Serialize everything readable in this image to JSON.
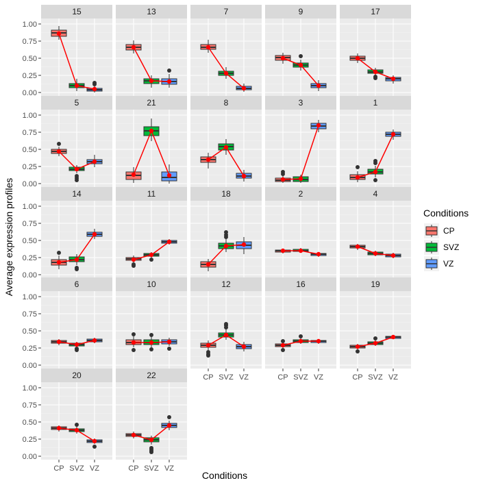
{
  "chart_data": {
    "type": "boxplot",
    "facet_layout": "5 columns x 5 rows, free panels, shared axes",
    "ylabel": "Average expression profiles",
    "xlabel": "Conditions",
    "categories": [
      "CP",
      "SVZ",
      "VZ"
    ],
    "ylim": [
      -0.05,
      1.08
    ],
    "yticks": [
      0.0,
      0.25,
      0.5,
      0.75,
      1.0
    ],
    "ytick_labels": [
      "0.00",
      "0.25",
      "0.50",
      "0.75",
      "1.00"
    ],
    "legend": {
      "title": "Conditions",
      "placement": "right",
      "entries": [
        {
          "label": "CP",
          "color": "#F8766D"
        },
        {
          "label": "SVZ",
          "color": "#00BA38"
        },
        {
          "label": "VZ",
          "color": "#619CFF"
        }
      ]
    },
    "mean_line_color": "#FF0000",
    "panels": [
      {
        "label": "15",
        "means": [
          0.86,
          0.1,
          0.05
        ],
        "boxes": [
          {
            "q1": 0.82,
            "median": 0.87,
            "q3": 0.91,
            "lo": 0.77,
            "hi": 0.97,
            "out": []
          },
          {
            "q1": 0.07,
            "median": 0.1,
            "q3": 0.13,
            "lo": 0.02,
            "hi": 0.2,
            "out": []
          },
          {
            "q1": 0.02,
            "median": 0.04,
            "q3": 0.06,
            "lo": 0.0,
            "hi": 0.09,
            "out": [
              0.12,
              0.14
            ]
          }
        ]
      },
      {
        "label": "13",
        "means": [
          0.66,
          0.17,
          0.16
        ],
        "boxes": [
          {
            "q1": 0.62,
            "median": 0.66,
            "q3": 0.7,
            "lo": 0.57,
            "hi": 0.76,
            "out": []
          },
          {
            "q1": 0.13,
            "median": 0.17,
            "q3": 0.2,
            "lo": 0.07,
            "hi": 0.25,
            "out": []
          },
          {
            "q1": 0.12,
            "median": 0.16,
            "q3": 0.2,
            "lo": 0.07,
            "hi": 0.27,
            "out": [
              0.32
            ]
          }
        ]
      },
      {
        "label": "7",
        "means": [
          0.66,
          0.28,
          0.06
        ],
        "boxes": [
          {
            "q1": 0.63,
            "median": 0.66,
            "q3": 0.7,
            "lo": 0.58,
            "hi": 0.77,
            "out": []
          },
          {
            "q1": 0.25,
            "median": 0.28,
            "q3": 0.31,
            "lo": 0.2,
            "hi": 0.37,
            "out": []
          },
          {
            "q1": 0.04,
            "median": 0.06,
            "q3": 0.09,
            "lo": 0.01,
            "hi": 0.13,
            "out": []
          }
        ]
      },
      {
        "label": "9",
        "means": [
          0.5,
          0.4,
          0.1
        ],
        "boxes": [
          {
            "q1": 0.47,
            "median": 0.51,
            "q3": 0.54,
            "lo": 0.42,
            "hi": 0.58,
            "out": []
          },
          {
            "q1": 0.37,
            "median": 0.4,
            "q3": 0.43,
            "lo": 0.32,
            "hi": 0.48,
            "out": [
              0.53
            ]
          },
          {
            "q1": 0.07,
            "median": 0.1,
            "q3": 0.13,
            "lo": 0.02,
            "hi": 0.18,
            "out": []
          }
        ]
      },
      {
        "label": "17",
        "means": [
          0.5,
          0.3,
          0.2
        ],
        "boxes": [
          {
            "q1": 0.47,
            "median": 0.5,
            "q3": 0.53,
            "lo": 0.43,
            "hi": 0.57,
            "out": []
          },
          {
            "q1": 0.28,
            "median": 0.3,
            "q3": 0.33,
            "lo": 0.25,
            "hi": 0.36,
            "out": [
              0.21,
              0.23
            ]
          },
          {
            "q1": 0.17,
            "median": 0.2,
            "q3": 0.22,
            "lo": 0.13,
            "hi": 0.25,
            "out": []
          }
        ]
      },
      {
        "label": "5",
        "means": [
          0.47,
          0.21,
          0.32
        ],
        "boxes": [
          {
            "q1": 0.44,
            "median": 0.47,
            "q3": 0.5,
            "lo": 0.4,
            "hi": 0.54,
            "out": [
              0.58
            ]
          },
          {
            "q1": 0.19,
            "median": 0.21,
            "q3": 0.24,
            "lo": 0.15,
            "hi": 0.27,
            "out": [
              0.05,
              0.08,
              0.11
            ]
          },
          {
            "q1": 0.29,
            "median": 0.32,
            "q3": 0.35,
            "lo": 0.24,
            "hi": 0.42,
            "out": []
          }
        ]
      },
      {
        "label": "21",
        "means": [
          0.13,
          0.77,
          0.12
        ],
        "boxes": [
          {
            "q1": 0.06,
            "median": 0.12,
            "q3": 0.17,
            "lo": 0.01,
            "hi": 0.24,
            "out": []
          },
          {
            "q1": 0.7,
            "median": 0.77,
            "q3": 0.83,
            "lo": 0.62,
            "hi": 0.95,
            "out": []
          },
          {
            "q1": 0.04,
            "median": 0.09,
            "q3": 0.17,
            "lo": 0.0,
            "hi": 0.28,
            "out": []
          }
        ]
      },
      {
        "label": "8",
        "means": [
          0.35,
          0.53,
          0.11
        ],
        "boxes": [
          {
            "q1": 0.31,
            "median": 0.35,
            "q3": 0.39,
            "lo": 0.22,
            "hi": 0.45,
            "out": []
          },
          {
            "q1": 0.49,
            "median": 0.54,
            "q3": 0.58,
            "lo": 0.42,
            "hi": 0.65,
            "out": []
          },
          {
            "q1": 0.08,
            "median": 0.11,
            "q3": 0.15,
            "lo": 0.03,
            "hi": 0.2,
            "out": []
          }
        ]
      },
      {
        "label": "3",
        "means": [
          0.06,
          0.07,
          0.85
        ],
        "boxes": [
          {
            "q1": 0.03,
            "median": 0.05,
            "q3": 0.08,
            "lo": 0.01,
            "hi": 0.11,
            "out": [
              0.14,
              0.17
            ]
          },
          {
            "q1": 0.03,
            "median": 0.06,
            "q3": 0.1,
            "lo": 0.01,
            "hi": 0.13,
            "out": []
          },
          {
            "q1": 0.8,
            "median": 0.84,
            "q3": 0.88,
            "lo": 0.75,
            "hi": 0.93,
            "out": []
          }
        ]
      },
      {
        "label": "1",
        "means": [
          0.09,
          0.17,
          0.72
        ],
        "boxes": [
          {
            "q1": 0.06,
            "median": 0.09,
            "q3": 0.13,
            "lo": 0.02,
            "hi": 0.18,
            "out": [
              0.24
            ]
          },
          {
            "q1": 0.14,
            "median": 0.17,
            "q3": 0.21,
            "lo": 0.09,
            "hi": 0.26,
            "out": [
              0.05,
              0.3,
              0.33
            ]
          },
          {
            "q1": 0.69,
            "median": 0.72,
            "q3": 0.75,
            "lo": 0.64,
            "hi": 0.79,
            "out": []
          }
        ]
      },
      {
        "label": "14",
        "means": [
          0.18,
          0.22,
          0.59
        ],
        "boxes": [
          {
            "q1": 0.14,
            "median": 0.18,
            "q3": 0.22,
            "lo": 0.08,
            "hi": 0.28,
            "out": [
              0.32
            ]
          },
          {
            "q1": 0.19,
            "median": 0.22,
            "q3": 0.26,
            "lo": 0.14,
            "hi": 0.3,
            "out": [
              0.08,
              0.1
            ]
          },
          {
            "q1": 0.56,
            "median": 0.59,
            "q3": 0.62,
            "lo": 0.52,
            "hi": 0.67,
            "out": []
          }
        ]
      },
      {
        "label": "11",
        "means": [
          0.22,
          0.29,
          0.48
        ],
        "boxes": [
          {
            "q1": 0.21,
            "median": 0.23,
            "q3": 0.25,
            "lo": 0.18,
            "hi": 0.28,
            "out": [
              0.13,
              0.15
            ]
          },
          {
            "q1": 0.27,
            "median": 0.29,
            "q3": 0.31,
            "lo": 0.25,
            "hi": 0.33,
            "out": [
              0.22
            ]
          },
          {
            "q1": 0.46,
            "median": 0.48,
            "q3": 0.5,
            "lo": 0.44,
            "hi": 0.52,
            "out": []
          }
        ]
      },
      {
        "label": "18",
        "means": [
          0.15,
          0.42,
          0.44
        ],
        "boxes": [
          {
            "q1": 0.11,
            "median": 0.15,
            "q3": 0.19,
            "lo": 0.05,
            "hi": 0.23,
            "out": []
          },
          {
            "q1": 0.38,
            "median": 0.42,
            "q3": 0.46,
            "lo": 0.33,
            "hi": 0.52,
            "out": [
              0.55,
              0.58,
              0.62
            ]
          },
          {
            "q1": 0.38,
            "median": 0.43,
            "q3": 0.48,
            "lo": 0.3,
            "hi": 0.55,
            "out": []
          }
        ]
      },
      {
        "label": "2",
        "means": [
          0.35,
          0.35,
          0.3
        ],
        "boxes": [
          {
            "q1": 0.33,
            "median": 0.35,
            "q3": 0.36,
            "lo": 0.31,
            "hi": 0.38,
            "out": []
          },
          {
            "q1": 0.34,
            "median": 0.35,
            "q3": 0.37,
            "lo": 0.32,
            "hi": 0.39,
            "out": []
          },
          {
            "q1": 0.28,
            "median": 0.3,
            "q3": 0.31,
            "lo": 0.26,
            "hi": 0.33,
            "out": []
          }
        ]
      },
      {
        "label": "4",
        "means": [
          0.41,
          0.31,
          0.28
        ],
        "boxes": [
          {
            "q1": 0.39,
            "median": 0.41,
            "q3": 0.43,
            "lo": 0.36,
            "hi": 0.45,
            "out": []
          },
          {
            "q1": 0.29,
            "median": 0.31,
            "q3": 0.33,
            "lo": 0.27,
            "hi": 0.35,
            "out": []
          },
          {
            "q1": 0.26,
            "median": 0.28,
            "q3": 0.3,
            "lo": 0.24,
            "hi": 0.32,
            "out": []
          }
        ]
      },
      {
        "label": "6",
        "means": [
          0.34,
          0.3,
          0.36
        ],
        "boxes": [
          {
            "q1": 0.32,
            "median": 0.34,
            "q3": 0.36,
            "lo": 0.29,
            "hi": 0.38,
            "out": []
          },
          {
            "q1": 0.28,
            "median": 0.3,
            "q3": 0.32,
            "lo": 0.26,
            "hi": 0.34,
            "out": [
              0.22,
              0.24
            ]
          },
          {
            "q1": 0.34,
            "median": 0.36,
            "q3": 0.38,
            "lo": 0.32,
            "hi": 0.4,
            "out": []
          }
        ]
      },
      {
        "label": "10",
        "means": [
          0.33,
          0.33,
          0.34
        ],
        "boxes": [
          {
            "q1": 0.3,
            "median": 0.33,
            "q3": 0.37,
            "lo": 0.26,
            "hi": 0.42,
            "out": [
              0.22,
              0.45
            ]
          },
          {
            "q1": 0.3,
            "median": 0.33,
            "q3": 0.37,
            "lo": 0.26,
            "hi": 0.42,
            "out": [
              0.23,
              0.44
            ]
          },
          {
            "q1": 0.31,
            "median": 0.34,
            "q3": 0.37,
            "lo": 0.28,
            "hi": 0.4,
            "out": [
              0.24
            ]
          }
        ]
      },
      {
        "label": "12",
        "means": [
          0.29,
          0.44,
          0.27
        ],
        "boxes": [
          {
            "q1": 0.26,
            "median": 0.29,
            "q3": 0.32,
            "lo": 0.22,
            "hi": 0.36,
            "out": [
              0.14,
              0.16,
              0.19
            ]
          },
          {
            "q1": 0.41,
            "median": 0.44,
            "q3": 0.47,
            "lo": 0.37,
            "hi": 0.52,
            "out": [
              0.55,
              0.58,
              0.6
            ]
          },
          {
            "q1": 0.24,
            "median": 0.27,
            "q3": 0.3,
            "lo": 0.2,
            "hi": 0.34,
            "out": []
          }
        ]
      },
      {
        "label": "16",
        "means": [
          0.29,
          0.35,
          0.35
        ],
        "boxes": [
          {
            "q1": 0.27,
            "median": 0.29,
            "q3": 0.31,
            "lo": 0.25,
            "hi": 0.33,
            "out": [
              0.22,
              0.35
            ]
          },
          {
            "q1": 0.33,
            "median": 0.35,
            "q3": 0.37,
            "lo": 0.31,
            "hi": 0.39,
            "out": [
              0.42
            ]
          },
          {
            "q1": 0.33,
            "median": 0.35,
            "q3": 0.36,
            "lo": 0.31,
            "hi": 0.38,
            "out": []
          }
        ]
      },
      {
        "label": "19",
        "means": [
          0.27,
          0.32,
          0.41
        ],
        "boxes": [
          {
            "q1": 0.25,
            "median": 0.27,
            "q3": 0.29,
            "lo": 0.23,
            "hi": 0.31,
            "out": [
              0.2
            ]
          },
          {
            "q1": 0.3,
            "median": 0.32,
            "q3": 0.34,
            "lo": 0.28,
            "hi": 0.36,
            "out": [
              0.39
            ]
          },
          {
            "q1": 0.39,
            "median": 0.41,
            "q3": 0.42,
            "lo": 0.38,
            "hi": 0.44,
            "out": []
          }
        ]
      },
      {
        "label": "20",
        "means": [
          0.41,
          0.38,
          0.22
        ],
        "boxes": [
          {
            "q1": 0.39,
            "median": 0.41,
            "q3": 0.43,
            "lo": 0.36,
            "hi": 0.45,
            "out": []
          },
          {
            "q1": 0.36,
            "median": 0.38,
            "q3": 0.4,
            "lo": 0.33,
            "hi": 0.43,
            "out": [
              0.46
            ]
          },
          {
            "q1": 0.2,
            "median": 0.22,
            "q3": 0.24,
            "lo": 0.18,
            "hi": 0.26,
            "out": [
              0.14
            ]
          }
        ]
      },
      {
        "label": "22",
        "means": [
          0.31,
          0.24,
          0.45
        ],
        "boxes": [
          {
            "q1": 0.29,
            "median": 0.31,
            "q3": 0.33,
            "lo": 0.26,
            "hi": 0.36,
            "out": []
          },
          {
            "q1": 0.21,
            "median": 0.24,
            "q3": 0.27,
            "lo": 0.17,
            "hi": 0.3,
            "out": [
              0.06,
              0.08,
              0.1,
              0.12
            ]
          },
          {
            "q1": 0.42,
            "median": 0.45,
            "q3": 0.48,
            "lo": 0.38,
            "hi": 0.52,
            "out": [
              0.57
            ]
          }
        ]
      }
    ]
  }
}
